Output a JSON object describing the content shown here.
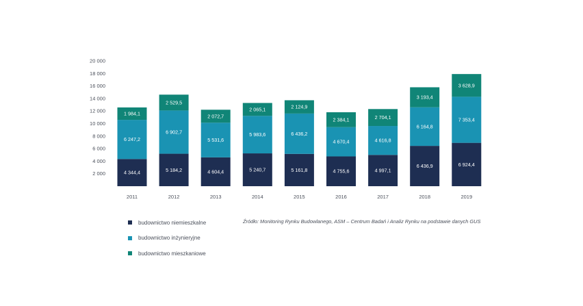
{
  "chart_data": {
    "type": "bar",
    "stacked": true,
    "categories": [
      "2011",
      "2012",
      "2013",
      "2014",
      "2015",
      "2016",
      "2017",
      "2018",
      "2019"
    ],
    "series": [
      {
        "name": "budownictwo niemieszkalne",
        "color": "#1e2e52",
        "values": [
          4344.4,
          5184.2,
          4604.4,
          5240.7,
          5161.8,
          4755.6,
          4997.1,
          6436.9,
          6924.4
        ],
        "labels": [
          "4 344,4",
          "5 184,2",
          "4 604,4",
          "5 240,7",
          "5 161,8",
          "4 755,6",
          "4 997,1",
          "6 436,9",
          "6 924,4"
        ]
      },
      {
        "name": "budownictwo inżynieryjne",
        "color": "#1a93b3",
        "values": [
          6247.2,
          6902.7,
          5531.6,
          5983.6,
          6436.2,
          4670.4,
          4616.8,
          6164.8,
          7353.4
        ],
        "labels": [
          "6 247,2",
          "6 902,7",
          "5 531,6",
          "5 983,6",
          "6 436,2",
          "4 670,4",
          "4 616,8",
          "6 164,8",
          "7 353,4"
        ]
      },
      {
        "name": "budownictwo mieszkaniowe",
        "color": "#108577",
        "values": [
          1984.1,
          2529.5,
          2072.7,
          2065.1,
          2124.9,
          2384.1,
          2704.1,
          3193.4,
          3628.9
        ],
        "labels": [
          "1 984,1",
          "2 529,5",
          "2 072,7",
          "2 065,1",
          "2 124,9",
          "2 384,1",
          "2 704,1",
          "3 193,4",
          "3 628,9"
        ]
      }
    ],
    "yticks": [
      2000,
      4000,
      6000,
      8000,
      10000,
      12000,
      14000,
      16000,
      18000,
      20000
    ],
    "ytick_labels": [
      "2 000",
      "4 000",
      "6 000",
      "8 000",
      "10 000",
      "12 000",
      "14 000",
      "16 000",
      "18 000",
      "20 000"
    ],
    "ylim": [
      0,
      20000
    ],
    "grid": false,
    "legend_position": "bottom-left",
    "source": "Źródło: Monitoring Rynku Budowlanego, ASM – Centrum Badań i Analiz Rynku na podstawie danych GUS"
  }
}
